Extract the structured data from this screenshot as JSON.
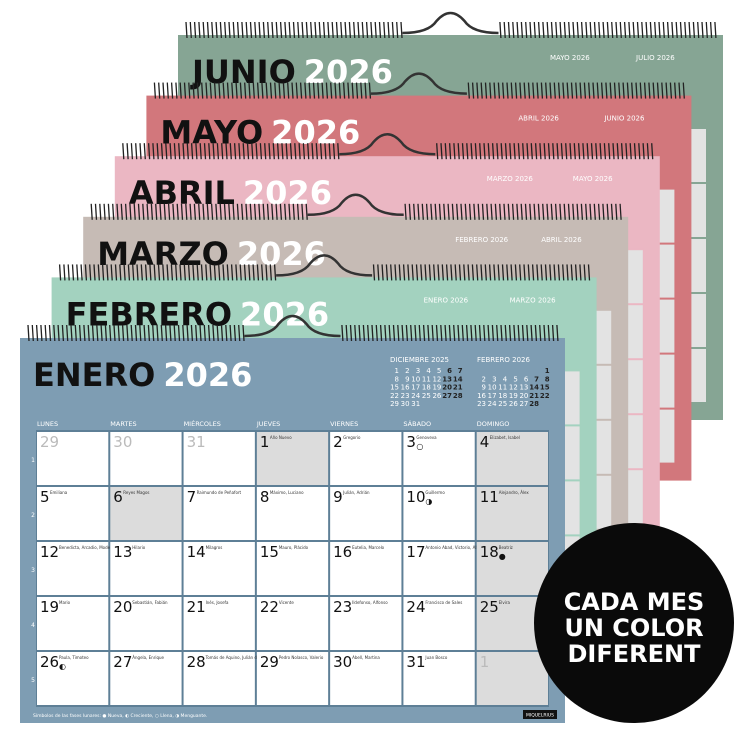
{
  "back_calendars": [
    {
      "month": "JUNIO",
      "year": "2026",
      "color": "#86a594",
      "minis": [
        "MAYO 2026",
        "JULIO 2026"
      ]
    },
    {
      "month": "MAYO",
      "year": "2026",
      "color": "#d2777c",
      "minis": [
        "ABRIL 2026",
        "JUNIO 2026"
      ]
    },
    {
      "month": "ABRIL",
      "year": "2026",
      "color": "#ebb7c3",
      "minis": [
        "MARZO 2026",
        "MAYO 2026"
      ]
    },
    {
      "month": "MARZO",
      "year": "2026",
      "color": "#c6bbb5",
      "minis": [
        "FEBRERO 2026",
        "ABRIL 2026"
      ]
    },
    {
      "month": "FEBRERO",
      "year": "2026",
      "color": "#a3d2bf",
      "minis": [
        "ENERO 2026",
        "MARZO 2026"
      ]
    }
  ],
  "front": {
    "month": "ENERO",
    "year": "2026",
    "color": "#7e9db3",
    "minis": [
      {
        "label": "DICIEMBRE 2025",
        "weeks": [
          [
            1,
            2,
            3,
            4,
            5,
            6,
            7
          ],
          [
            8,
            9,
            10,
            11,
            12,
            13,
            14
          ],
          [
            15,
            16,
            17,
            18,
            19,
            20,
            21
          ],
          [
            22,
            23,
            24,
            25,
            26,
            27,
            28
          ],
          [
            29,
            30,
            31,
            null,
            null,
            null,
            null
          ]
        ]
      },
      {
        "label": "FEBRERO 2026",
        "weeks": [
          [
            null,
            null,
            null,
            null,
            null,
            null,
            1
          ],
          [
            2,
            3,
            4,
            5,
            6,
            7,
            8
          ],
          [
            9,
            10,
            11,
            12,
            13,
            14,
            15
          ],
          [
            16,
            17,
            18,
            19,
            20,
            21,
            22
          ],
          [
            23,
            24,
            25,
            26,
            27,
            28,
            null
          ]
        ]
      }
    ],
    "weekdays": [
      "LUNES",
      "MARTES",
      "MIÉRCOLES",
      "JUEVES",
      "VIERNES",
      "SÁBADO",
      "DOMINGO"
    ],
    "weeks": [
      "1",
      "2",
      "3",
      "4",
      "5"
    ],
    "cells": [
      {
        "day": "29",
        "color": "#bbbbbb"
      },
      {
        "day": "30",
        "color": "#bbbbbb"
      },
      {
        "day": "31",
        "color": "#bbbbbb"
      },
      {
        "day": "1",
        "name": "Año Nuevo",
        "fill": "#dcdcdc"
      },
      {
        "day": "2",
        "name": "Gregorio"
      },
      {
        "day": "3",
        "name": "Genoveva",
        "moon": "○"
      },
      {
        "day": "4",
        "name": "Elizabet, Isabel",
        "fill": "#dcdcdc"
      },
      {
        "day": "5",
        "name": "Emiliana"
      },
      {
        "day": "6",
        "name": "Reyes Magos",
        "fill": "#dcdcdc"
      },
      {
        "day": "7",
        "name": "Raimundo de Peñafort"
      },
      {
        "day": "8",
        "name": "Máximo, Luciano"
      },
      {
        "day": "9",
        "name": "Julián, Adrián"
      },
      {
        "day": "10",
        "name": "Guillermo",
        "moon": "◑"
      },
      {
        "day": "11",
        "name": "Alejandro, Álex",
        "fill": "#dcdcdc"
      },
      {
        "day": "12",
        "name": "Benedicta, Arcadio, Modesto"
      },
      {
        "day": "13",
        "name": "Hilario"
      },
      {
        "day": "14",
        "name": "Milagros"
      },
      {
        "day": "15",
        "name": "Mauro, Plácido"
      },
      {
        "day": "16",
        "name": "Eutelia, Marcelo"
      },
      {
        "day": "17",
        "name": "Antonio Abad, Victorio, Alfredo"
      },
      {
        "day": "18",
        "name": "Beatriz",
        "moon": "●",
        "fill": "#dcdcdc"
      },
      {
        "day": "19",
        "name": "Mario"
      },
      {
        "day": "20",
        "name": "Sebastián, Fabián"
      },
      {
        "day": "21",
        "name": "Inés, Josefa"
      },
      {
        "day": "22",
        "name": "Vicente"
      },
      {
        "day": "23",
        "name": "Ildefonso, Alfonso"
      },
      {
        "day": "24",
        "name": "Francisco de Sales"
      },
      {
        "day": "25",
        "name": "Elvira",
        "fill": "#dcdcdc"
      },
      {
        "day": "26",
        "name": "Paula, Timoteo",
        "moon": "◐"
      },
      {
        "day": "27",
        "name": "Ángela, Enrique"
      },
      {
        "day": "28",
        "name": "Tomás de Aquino, Julián de Cuenca"
      },
      {
        "day": "29",
        "name": "Pedro Nolasco, Valerio"
      },
      {
        "day": "30",
        "name": "Abell, Martina"
      },
      {
        "day": "31",
        "name": "Juan Bosco"
      },
      {
        "day": "1",
        "color": "#bbbbbb",
        "fill": "#dcdcdc"
      }
    ],
    "legend": "Símbolos de las fases lunares:  ● Nueva,  ◐ Creciente,  ○ Llena,  ◑ Menguante.",
    "brand": "MIQUELRIUS"
  },
  "badge": {
    "lines": [
      "CADA MES",
      "UN COLOR",
      "DIFERENT"
    ]
  }
}
